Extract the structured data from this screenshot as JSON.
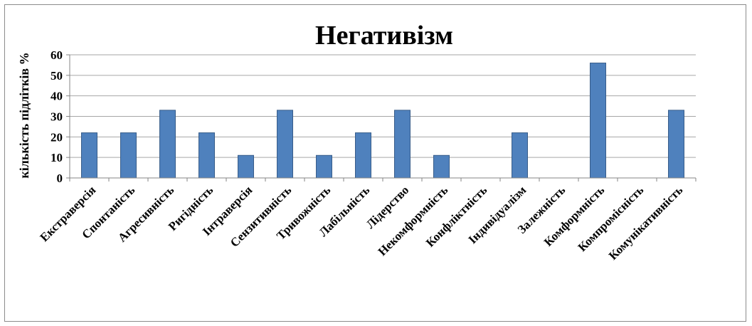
{
  "chart_data": {
    "type": "bar",
    "title": "Негативізм",
    "ylabel": "кількість підлітків %",
    "xlabel": "",
    "ylim": [
      0,
      60
    ],
    "yticks": [
      0,
      10,
      20,
      30,
      40,
      50,
      60
    ],
    "grid": true,
    "legend": "none",
    "bar_color": "#4f81bd",
    "categories": [
      "Екстраверсія",
      "Спонтаність",
      "Агресивність",
      "Ригідність",
      "Інтраверсія",
      "Сензитивність",
      "Тривожність",
      "Лабільність",
      "Лідерство",
      "Некомформність",
      "Конфліктність",
      "Індивідуалізм",
      "Залежність",
      "Комформність",
      "Компромісність",
      "Комунікативність"
    ],
    "values": [
      22,
      22,
      33,
      22,
      11,
      33,
      11,
      22,
      33,
      11,
      0,
      22,
      0,
      56,
      0,
      33
    ]
  }
}
